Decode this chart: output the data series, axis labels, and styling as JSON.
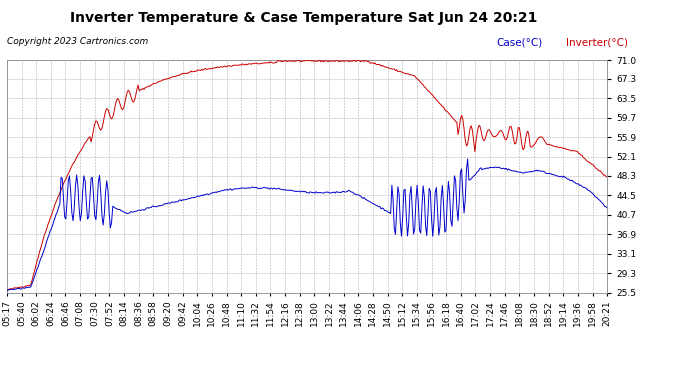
{
  "title": "Inverter Temperature & Case Temperature Sat Jun 24 20:21",
  "copyright": "Copyright 2023 Cartronics.com",
  "legend_case": "Case(°C)",
  "legend_inverter": "Inverter(°C)",
  "yticks": [
    25.5,
    29.3,
    33.1,
    36.9,
    40.7,
    44.5,
    48.3,
    52.1,
    55.9,
    59.7,
    63.5,
    67.3,
    71.0
  ],
  "ylim": [
    25.5,
    71.0
  ],
  "color_case": "#0000cc",
  "color_inverter": "#cc0000",
  "background_color": "#ffffff",
  "grid_color": "#b0b0b0",
  "title_fontsize": 10,
  "copyright_fontsize": 6.5,
  "tick_fontsize": 6.5,
  "legend_fontsize": 7.5,
  "xtick_labels": [
    "05:17",
    "05:40",
    "06:02",
    "06:24",
    "06:46",
    "07:08",
    "07:30",
    "07:52",
    "08:14",
    "08:36",
    "08:58",
    "09:20",
    "09:42",
    "10:04",
    "10:26",
    "10:48",
    "11:10",
    "11:32",
    "11:54",
    "12:16",
    "12:38",
    "13:00",
    "13:22",
    "13:44",
    "14:06",
    "14:28",
    "14:50",
    "15:12",
    "15:34",
    "15:56",
    "16:18",
    "16:40",
    "17:02",
    "17:24",
    "17:46",
    "18:08",
    "18:30",
    "18:52",
    "19:14",
    "19:36",
    "19:58",
    "20:21"
  ]
}
